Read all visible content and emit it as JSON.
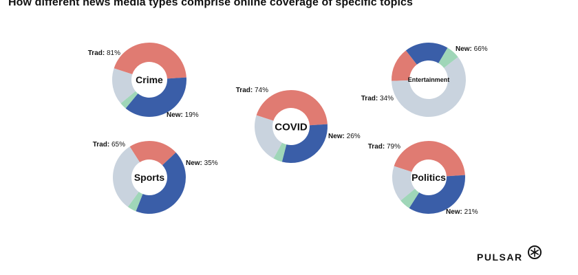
{
  "title": "How different news media types comprise online coverage of specific topics",
  "brand": "PULSAR",
  "colors": {
    "trad_red": "#e07b72",
    "trad_blue": "#3a5ea8",
    "new_green": "#9fd6b8",
    "new_gray": "#c9d3de"
  },
  "chart_data": {
    "type": "pie",
    "variant": "donut",
    "charts": [
      {
        "topic": "Crime",
        "labels": {
          "trad": "Trad: 81%",
          "new": "New: 19%"
        },
        "slices": [
          {
            "name": "Trad",
            "segment": "red",
            "value": 44
          },
          {
            "name": "Trad",
            "segment": "blue",
            "value": 37
          },
          {
            "name": "New",
            "segment": "green",
            "value": 3
          },
          {
            "name": "New",
            "segment": "gray",
            "value": 16
          }
        ]
      },
      {
        "topic": "Sports",
        "labels": {
          "trad": "Trad: 65%",
          "new": "New: 35%"
        },
        "slices": [
          {
            "name": "Trad",
            "segment": "red",
            "value": 22
          },
          {
            "name": "Trad",
            "segment": "blue",
            "value": 43
          },
          {
            "name": "New",
            "segment": "green",
            "value": 4
          },
          {
            "name": "New",
            "segment": "gray",
            "value": 31
          }
        ]
      },
      {
        "topic": "COVID",
        "labels": {
          "trad": "Trad: 74%",
          "new": "New: 26%"
        },
        "slices": [
          {
            "name": "Trad",
            "segment": "red",
            "value": 44
          },
          {
            "name": "Trad",
            "segment": "blue",
            "value": 30
          },
          {
            "name": "New",
            "segment": "green",
            "value": 4
          },
          {
            "name": "New",
            "segment": "gray",
            "value": 22
          }
        ]
      },
      {
        "topic": "Entertainment",
        "labels": {
          "trad": "Trad: 34%",
          "new": "New: 66%"
        },
        "slices": [
          {
            "name": "Trad",
            "segment": "red",
            "value": 15
          },
          {
            "name": "Trad",
            "segment": "blue",
            "value": 19
          },
          {
            "name": "New",
            "segment": "green",
            "value": 6
          },
          {
            "name": "New",
            "segment": "gray",
            "value": 60
          }
        ]
      },
      {
        "topic": "Politics",
        "labels": {
          "trad": "Trad: 79%",
          "new": "New: 21%"
        },
        "slices": [
          {
            "name": "Trad",
            "segment": "red",
            "value": 44
          },
          {
            "name": "Trad",
            "segment": "blue",
            "value": 35
          },
          {
            "name": "New",
            "segment": "green",
            "value": 5
          },
          {
            "name": "New",
            "segment": "gray",
            "value": 16
          }
        ]
      }
    ]
  }
}
